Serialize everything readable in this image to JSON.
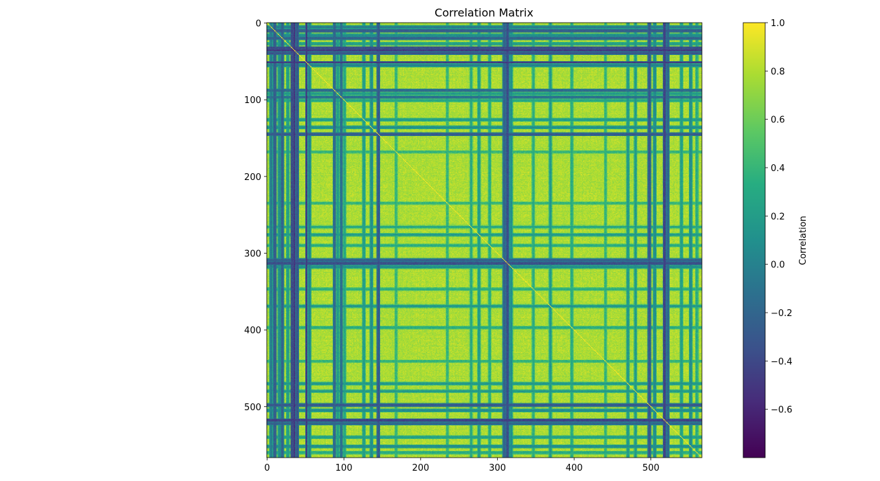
{
  "chart_data": {
    "type": "heatmap",
    "title": "Correlation Matrix",
    "xlabel": "",
    "ylabel": "",
    "n": 567,
    "x_ticks": [
      0,
      100,
      200,
      300,
      400,
      500
    ],
    "y_ticks": [
      0,
      100,
      200,
      300,
      400,
      500
    ],
    "colormap": "viridis",
    "value_range": [
      -0.8,
      1.0
    ],
    "colorbar": {
      "label": "Correlation",
      "ticks": [
        1.0,
        0.8,
        0.6,
        0.4,
        0.2,
        0.0,
        -0.2,
        -0.4,
        -0.6
      ],
      "tick_labels": [
        "1.0",
        "0.8",
        "0.6",
        "0.4",
        "0.2",
        "0.0",
        "−0.2",
        "−0.4",
        "−0.6"
      ]
    },
    "diagonal_value": 1.0,
    "dominant_value": 0.8,
    "low_correlation_bands": [
      {
        "index": 5,
        "value": 0.0
      },
      {
        "index": 10,
        "value": -0.3
      },
      {
        "index": 16,
        "value": 0.1
      },
      {
        "index": 20,
        "value": -0.2
      },
      {
        "index": 27,
        "value": 0.2
      },
      {
        "index": 33,
        "value": -0.4
      },
      {
        "index": 36,
        "value": -0.5
      },
      {
        "index": 39,
        "value": -0.3
      },
      {
        "index": 52,
        "value": -0.5
      },
      {
        "index": 55,
        "value": 0.0
      },
      {
        "index": 88,
        "value": -0.2
      },
      {
        "index": 92,
        "value": 0.2
      },
      {
        "index": 97,
        "value": -0.1
      },
      {
        "index": 101,
        "value": 0.3
      },
      {
        "index": 126,
        "value": 0.2
      },
      {
        "index": 136,
        "value": 0.1
      },
      {
        "index": 145,
        "value": -0.3
      },
      {
        "index": 168,
        "value": 0.4
      },
      {
        "index": 235,
        "value": 0.4
      },
      {
        "index": 266,
        "value": 0.3
      },
      {
        "index": 276,
        "value": 0.2
      },
      {
        "index": 290,
        "value": 0.3
      },
      {
        "index": 309,
        "value": -0.2
      },
      {
        "index": 313,
        "value": -0.4
      },
      {
        "index": 318,
        "value": 0.1
      },
      {
        "index": 347,
        "value": 0.3
      },
      {
        "index": 369,
        "value": 0.2
      },
      {
        "index": 397,
        "value": 0.3
      },
      {
        "index": 441,
        "value": 0.4
      },
      {
        "index": 470,
        "value": 0.2
      },
      {
        "index": 480,
        "value": 0.2
      },
      {
        "index": 498,
        "value": -0.3
      },
      {
        "index": 505,
        "value": 0.1
      },
      {
        "index": 518,
        "value": -0.4
      },
      {
        "index": 522,
        "value": -0.2
      },
      {
        "index": 540,
        "value": 0.2
      },
      {
        "index": 552,
        "value": 0.1
      },
      {
        "index": 560,
        "value": 0.3
      }
    ]
  }
}
